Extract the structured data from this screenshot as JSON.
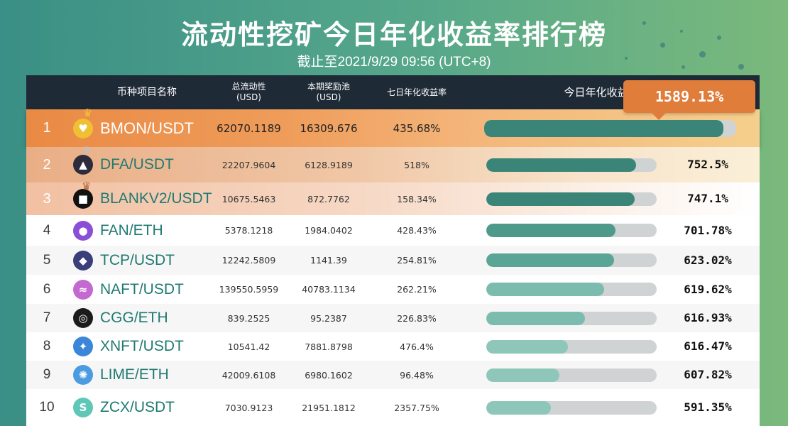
{
  "header": {
    "title": "流动性挖矿今日年化收益率排行榜",
    "subtitle": "截止至2021/9/29 09:56 (UTC+8)"
  },
  "table": {
    "columns": {
      "pair": "币种项目名称",
      "liquidity": "总流动性\n(USD)",
      "pool": "本期奖励池\n(USD)",
      "seven_day": "七日年化收益率",
      "today": "今日年化收益率"
    },
    "top_callout": "1589.13%",
    "rows": [
      {
        "rank": "1",
        "pair": "BMON/USDT",
        "liquidity": "62070.1189",
        "pool": "16309.676",
        "seven_day": "435.68%",
        "today": "1589.13%",
        "bar": 0.95,
        "icon": "bmon-icon",
        "color": "#f0c033"
      },
      {
        "rank": "2",
        "pair": "DFA/USDT",
        "liquidity": "22207.9604",
        "pool": "6128.9189",
        "seven_day": "518%",
        "today": "752.5%",
        "bar": 0.88,
        "icon": "dfa-icon",
        "color": "#2c2c3c"
      },
      {
        "rank": "3",
        "pair": "BLANKV2/USDT",
        "liquidity": "10675.5463",
        "pool": "872.7762",
        "seven_day": "158.34%",
        "today": "747.1%",
        "bar": 0.87,
        "icon": "blank-icon",
        "color": "#111111"
      },
      {
        "rank": "4",
        "pair": "FAN/ETH",
        "liquidity": "5378.1218",
        "pool": "1984.0402",
        "seven_day": "428.43%",
        "today": "701.78%",
        "bar": 0.76,
        "icon": "fan-icon",
        "color": "#8a4fd6"
      },
      {
        "rank": "5",
        "pair": "TCP/USDT",
        "liquidity": "12242.5809",
        "pool": "1141.39",
        "seven_day": "254.81%",
        "today": "623.02%",
        "bar": 0.75,
        "icon": "tcp-icon",
        "color": "#3a3f7a"
      },
      {
        "rank": "6",
        "pair": "NAFT/USDT",
        "liquidity": "139550.5959",
        "pool": "40783.1134",
        "seven_day": "262.21%",
        "today": "619.62%",
        "bar": 0.69,
        "icon": "naft-icon",
        "color": "#c36ad0"
      },
      {
        "rank": "7",
        "pair": "CGG/ETH",
        "liquidity": "839.2525",
        "pool": "95.2387",
        "seven_day": "226.83%",
        "today": "616.93%",
        "bar": 0.58,
        "icon": "cgg-icon",
        "color": "#1b1b1b"
      },
      {
        "rank": "8",
        "pair": "XNFT/USDT",
        "liquidity": "10541.42",
        "pool": "7881.8798",
        "seven_day": "476.4%",
        "today": "616.47%",
        "bar": 0.48,
        "icon": "xnft-icon",
        "color": "#3b86d8"
      },
      {
        "rank": "9",
        "pair": "LIME/ETH",
        "liquidity": "42009.6108",
        "pool": "6980.1602",
        "seven_day": "96.48%",
        "today": "607.82%",
        "bar": 0.43,
        "icon": "lime-icon",
        "color": "#4b9be0"
      },
      {
        "rank": "10",
        "pair": "ZCX/USDT",
        "liquidity": "7030.9123",
        "pool": "21951.1812",
        "seven_day": "2357.75%",
        "today": "591.35%",
        "bar": 0.38,
        "icon": "zcx-icon",
        "color": "#5fc7b8"
      }
    ]
  }
}
